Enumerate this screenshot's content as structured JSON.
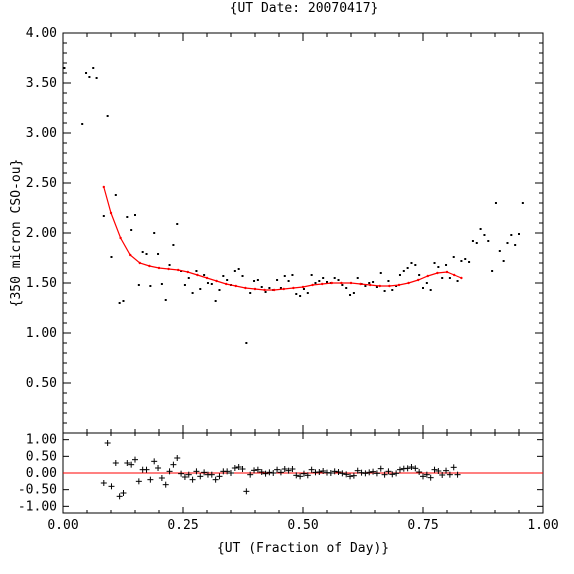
{
  "chart_data": [
    {
      "type": "scatter",
      "title": "{UT Date: 20070417}",
      "ylabel": "{350 micron CSO-ou}",
      "xlabel": "",
      "xlim": [
        0.0,
        1.0
      ],
      "ylim": [
        0.0,
        4.0
      ],
      "xticks": [
        "0.00",
        "0.25",
        "0.50",
        "0.75",
        "1.00"
      ],
      "yticks": [
        "0.50",
        "1.00",
        "1.50",
        "2.00",
        "2.50",
        "3.00",
        "3.50",
        "4.00"
      ],
      "fit_color": "#ff0000",
      "points_color": "#000000",
      "series": [
        {
          "points": [
            [
              0.003,
              3.65
            ],
            [
              0.04,
              3.09
            ],
            [
              0.048,
              3.6
            ],
            [
              0.055,
              3.56
            ],
            [
              0.063,
              3.65
            ],
            [
              0.07,
              3.55
            ],
            [
              0.085,
              2.17
            ],
            [
              0.093,
              3.17
            ],
            [
              0.101,
              1.76
            ],
            [
              0.11,
              2.38
            ],
            [
              0.118,
              1.3
            ],
            [
              0.126,
              1.32
            ],
            [
              0.134,
              2.16
            ],
            [
              0.142,
              2.03
            ],
            [
              0.15,
              2.18
            ],
            [
              0.158,
              1.48
            ],
            [
              0.166,
              1.81
            ],
            [
              0.174,
              1.79
            ],
            [
              0.182,
              1.47
            ],
            [
              0.19,
              2.0
            ],
            [
              0.198,
              1.79
            ],
            [
              0.206,
              1.49
            ],
            [
              0.214,
              1.33
            ],
            [
              0.222,
              1.68
            ],
            [
              0.23,
              1.88
            ],
            [
              0.238,
              2.09
            ],
            [
              0.246,
              1.62
            ],
            [
              0.254,
              1.48
            ],
            [
              0.262,
              1.55
            ],
            [
              0.27,
              1.4
            ],
            [
              0.278,
              1.62
            ],
            [
              0.286,
              1.44
            ],
            [
              0.294,
              1.58
            ],
            [
              0.302,
              1.5
            ],
            [
              0.31,
              1.49
            ],
            [
              0.318,
              1.32
            ],
            [
              0.326,
              1.43
            ],
            [
              0.334,
              1.57
            ],
            [
              0.342,
              1.53
            ],
            [
              0.35,
              1.48
            ],
            [
              0.358,
              1.62
            ],
            [
              0.366,
              1.64
            ],
            [
              0.374,
              1.57
            ],
            [
              0.382,
              0.9
            ],
            [
              0.39,
              1.4
            ],
            [
              0.398,
              1.52
            ],
            [
              0.406,
              1.53
            ],
            [
              0.414,
              1.46
            ],
            [
              0.422,
              1.41
            ],
            [
              0.43,
              1.45
            ],
            [
              0.438,
              1.43
            ],
            [
              0.446,
              1.53
            ],
            [
              0.454,
              1.45
            ],
            [
              0.462,
              1.57
            ],
            [
              0.47,
              1.52
            ],
            [
              0.478,
              1.58
            ],
            [
              0.486,
              1.39
            ],
            [
              0.494,
              1.37
            ],
            [
              0.502,
              1.44
            ],
            [
              0.51,
              1.4
            ],
            [
              0.518,
              1.58
            ],
            [
              0.526,
              1.5
            ],
            [
              0.534,
              1.52
            ],
            [
              0.542,
              1.55
            ],
            [
              0.55,
              1.51
            ],
            [
              0.558,
              1.5
            ],
            [
              0.566,
              1.55
            ],
            [
              0.574,
              1.53
            ],
            [
              0.582,
              1.48
            ],
            [
              0.59,
              1.45
            ],
            [
              0.598,
              1.38
            ],
            [
              0.606,
              1.4
            ],
            [
              0.614,
              1.55
            ],
            [
              0.622,
              1.49
            ],
            [
              0.63,
              1.47
            ],
            [
              0.638,
              1.5
            ],
            [
              0.646,
              1.51
            ],
            [
              0.654,
              1.46
            ],
            [
              0.662,
              1.6
            ],
            [
              0.67,
              1.42
            ],
            [
              0.678,
              1.52
            ],
            [
              0.686,
              1.43
            ],
            [
              0.694,
              1.47
            ],
            [
              0.702,
              1.58
            ],
            [
              0.71,
              1.62
            ],
            [
              0.718,
              1.65
            ],
            [
              0.726,
              1.7
            ],
            [
              0.734,
              1.68
            ],
            [
              0.742,
              1.58
            ],
            [
              0.75,
              1.45
            ],
            [
              0.758,
              1.5
            ],
            [
              0.766,
              1.43
            ],
            [
              0.774,
              1.7
            ],
            [
              0.782,
              1.66
            ],
            [
              0.79,
              1.55
            ],
            [
              0.798,
              1.68
            ],
            [
              0.806,
              1.55
            ],
            [
              0.814,
              1.76
            ],
            [
              0.822,
              1.52
            ],
            [
              0.83,
              1.72
            ],
            [
              0.838,
              1.74
            ],
            [
              0.846,
              1.71
            ],
            [
              0.854,
              1.92
            ],
            [
              0.862,
              1.9
            ],
            [
              0.87,
              2.04
            ],
            [
              0.878,
              1.98
            ],
            [
              0.886,
              1.92
            ],
            [
              0.894,
              1.62
            ],
            [
              0.902,
              2.3
            ],
            [
              0.91,
              1.82
            ],
            [
              0.918,
              1.72
            ],
            [
              0.926,
              1.9
            ],
            [
              0.934,
              1.98
            ],
            [
              0.942,
              1.88
            ],
            [
              0.95,
              1.99
            ],
            [
              0.958,
              2.3
            ]
          ]
        },
        {
          "fit_curve": [
            [
              0.085,
              2.46
            ],
            [
              0.1,
              2.2
            ],
            [
              0.12,
              1.95
            ],
            [
              0.14,
              1.78
            ],
            [
              0.16,
              1.7
            ],
            [
              0.18,
              1.67
            ],
            [
              0.2,
              1.65
            ],
            [
              0.22,
              1.64
            ],
            [
              0.24,
              1.63
            ],
            [
              0.26,
              1.61
            ],
            [
              0.28,
              1.58
            ],
            [
              0.3,
              1.55
            ],
            [
              0.32,
              1.52
            ],
            [
              0.34,
              1.49
            ],
            [
              0.36,
              1.47
            ],
            [
              0.38,
              1.45
            ],
            [
              0.4,
              1.44
            ],
            [
              0.42,
              1.43
            ],
            [
              0.44,
              1.43
            ],
            [
              0.46,
              1.44
            ],
            [
              0.48,
              1.45
            ],
            [
              0.5,
              1.46
            ],
            [
              0.52,
              1.48
            ],
            [
              0.54,
              1.49
            ],
            [
              0.56,
              1.5
            ],
            [
              0.58,
              1.5
            ],
            [
              0.6,
              1.5
            ],
            [
              0.62,
              1.49
            ],
            [
              0.64,
              1.48
            ],
            [
              0.66,
              1.47
            ],
            [
              0.68,
              1.47
            ],
            [
              0.7,
              1.48
            ],
            [
              0.72,
              1.5
            ],
            [
              0.74,
              1.53
            ],
            [
              0.76,
              1.57
            ],
            [
              0.78,
              1.6
            ],
            [
              0.8,
              1.61
            ],
            [
              0.815,
              1.58
            ],
            [
              0.83,
              1.55
            ]
          ]
        }
      ]
    },
    {
      "type": "scatter",
      "title": "",
      "xlabel": "{UT (Fraction of Day)}",
      "ylabel": "",
      "xlim": [
        0.0,
        1.0
      ],
      "ylim": [
        -1.2,
        1.2
      ],
      "xticks": [
        "0.00",
        "0.25",
        "0.50",
        "0.75",
        "1.00"
      ],
      "yticks": [
        "-1.00",
        "-0.50",
        "0.00",
        "0.50",
        "1.00"
      ],
      "zero_line_color": "#ff0000",
      "points_color": "#000000",
      "residuals": [
        [
          0.085,
          -0.3
        ],
        [
          0.093,
          0.9
        ],
        [
          0.101,
          -0.4
        ],
        [
          0.11,
          0.3
        ],
        [
          0.118,
          -0.7
        ],
        [
          0.126,
          -0.6
        ],
        [
          0.134,
          0.3
        ],
        [
          0.142,
          0.25
        ],
        [
          0.15,
          0.4
        ],
        [
          0.158,
          -0.25
        ],
        [
          0.166,
          0.1
        ],
        [
          0.174,
          0.1
        ],
        [
          0.182,
          -0.2
        ],
        [
          0.19,
          0.35
        ],
        [
          0.198,
          0.15
        ],
        [
          0.206,
          -0.15
        ],
        [
          0.214,
          -0.35
        ],
        [
          0.222,
          0.05
        ],
        [
          0.23,
          0.25
        ],
        [
          0.238,
          0.45
        ],
        [
          0.246,
          -0.02
        ],
        [
          0.254,
          -0.12
        ],
        [
          0.262,
          -0.05
        ],
        [
          0.27,
          -0.2
        ],
        [
          0.278,
          0.05
        ],
        [
          0.286,
          -0.1
        ],
        [
          0.294,
          0.02
        ],
        [
          0.302,
          -0.05
        ],
        [
          0.31,
          -0.05
        ],
        [
          0.318,
          -0.2
        ],
        [
          0.326,
          -0.1
        ],
        [
          0.334,
          0.05
        ],
        [
          0.342,
          0.05
        ],
        [
          0.35,
          0.0
        ],
        [
          0.358,
          0.15
        ],
        [
          0.366,
          0.18
        ],
        [
          0.374,
          0.12
        ],
        [
          0.382,
          -0.55
        ],
        [
          0.39,
          -0.05
        ],
        [
          0.398,
          0.08
        ],
        [
          0.406,
          0.1
        ],
        [
          0.414,
          0.03
        ],
        [
          0.422,
          -0.02
        ],
        [
          0.43,
          0.02
        ],
        [
          0.438,
          0.0
        ],
        [
          0.446,
          0.1
        ],
        [
          0.454,
          0.02
        ],
        [
          0.462,
          0.12
        ],
        [
          0.47,
          0.07
        ],
        [
          0.478,
          0.12
        ],
        [
          0.486,
          -0.07
        ],
        [
          0.494,
          -0.1
        ],
        [
          0.502,
          -0.02
        ],
        [
          0.51,
          -0.07
        ],
        [
          0.518,
          0.1
        ],
        [
          0.526,
          0.02
        ],
        [
          0.534,
          0.03
        ],
        [
          0.542,
          0.06
        ],
        [
          0.55,
          0.01
        ],
        [
          0.558,
          0.0
        ],
        [
          0.566,
          0.05
        ],
        [
          0.574,
          0.03
        ],
        [
          0.582,
          -0.01
        ],
        [
          0.59,
          -0.04
        ],
        [
          0.598,
          -0.1
        ],
        [
          0.606,
          -0.08
        ],
        [
          0.614,
          0.07
        ],
        [
          0.622,
          0.01
        ],
        [
          0.63,
          -0.01
        ],
        [
          0.638,
          0.02
        ],
        [
          0.646,
          0.04
        ],
        [
          0.654,
          -0.01
        ],
        [
          0.662,
          0.13
        ],
        [
          0.67,
          -0.05
        ],
        [
          0.678,
          0.05
        ],
        [
          0.686,
          -0.04
        ],
        [
          0.694,
          -0.01
        ],
        [
          0.702,
          0.1
        ],
        [
          0.71,
          0.13
        ],
        [
          0.718,
          0.14
        ],
        [
          0.726,
          0.18
        ],
        [
          0.734,
          0.14
        ],
        [
          0.742,
          0.03
        ],
        [
          0.75,
          -0.1
        ],
        [
          0.758,
          -0.05
        ],
        [
          0.766,
          -0.14
        ],
        [
          0.774,
          0.1
        ],
        [
          0.782,
          0.06
        ],
        [
          0.79,
          -0.06
        ],
        [
          0.798,
          0.07
        ],
        [
          0.806,
          -0.05
        ],
        [
          0.814,
          0.17
        ],
        [
          0.822,
          -0.05
        ]
      ]
    }
  ]
}
